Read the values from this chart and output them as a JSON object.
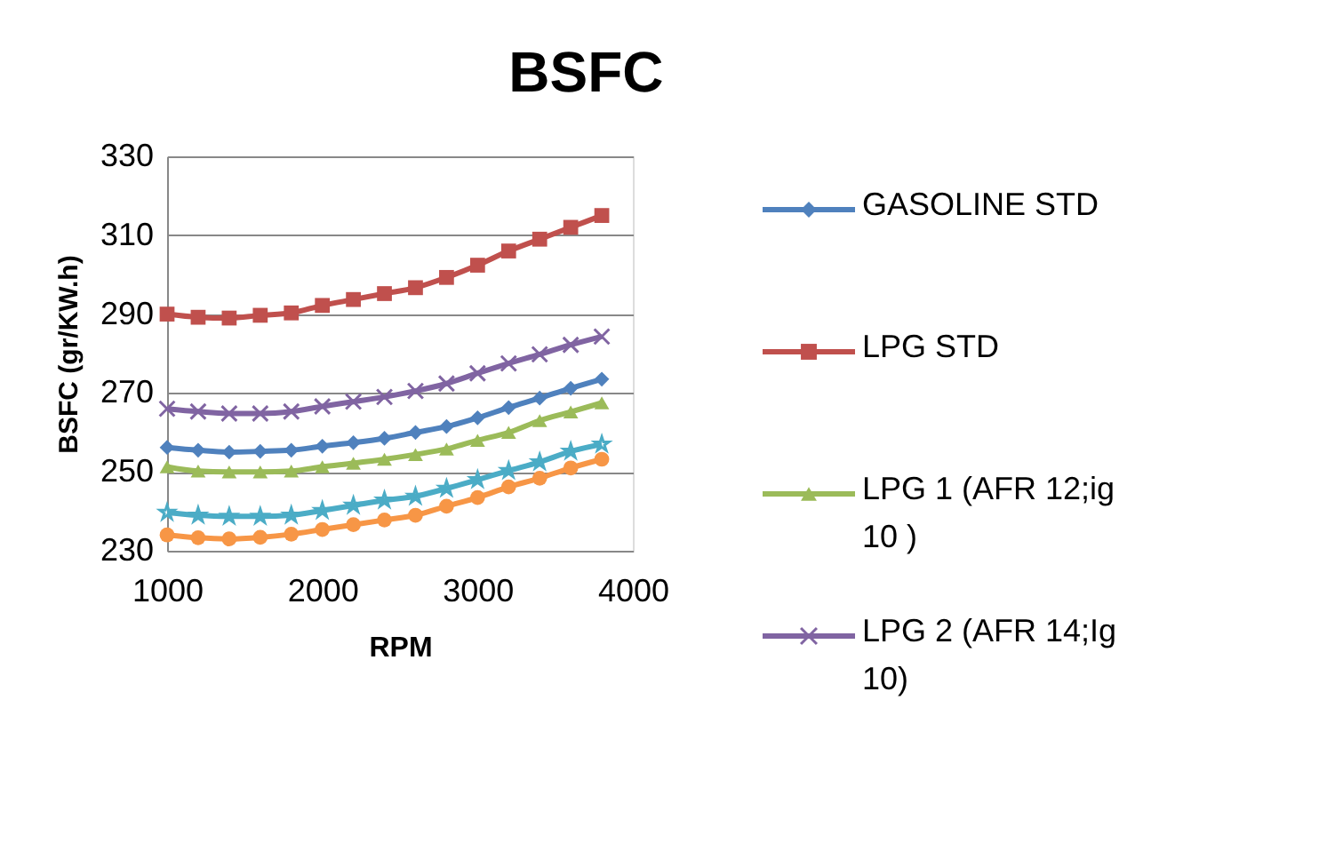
{
  "chart_data": {
    "type": "line",
    "title": "BSFC",
    "xlabel": "RPM",
    "ylabel": "BSFC (gr/KW.h)",
    "x": [
      1000,
      1200,
      1400,
      1600,
      1800,
      2000,
      2200,
      2400,
      2600,
      2800,
      3000,
      3200,
      3400,
      3600,
      3800
    ],
    "xlim": [
      1000,
      4000
    ],
    "xticks": [
      1000,
      2000,
      3000,
      4000
    ],
    "ylim": [
      230,
      330
    ],
    "yticks": [
      230,
      250,
      270,
      290,
      310,
      330
    ],
    "grid": "y",
    "legend": "right",
    "series": [
      {
        "name": "GASOLINE STD",
        "color": "#4f81bd",
        "marker": "diamond",
        "values": [
          256.2,
          255.5,
          255,
          255.2,
          255.5,
          256.5,
          257.4,
          258.5,
          260,
          261.5,
          263.7,
          266.3,
          268.7,
          271.2,
          273.5
        ]
      },
      {
        "name": "LPG STD",
        "color": "#c0504d",
        "marker": "square",
        "values": [
          290,
          289.2,
          289,
          289.7,
          290.3,
          292.2,
          293.7,
          295.2,
          296.7,
          299.3,
          302.4,
          306,
          309,
          312,
          315
        ]
      },
      {
        "name": "LPG 1 (AFR 12;ig 10 )",
        "color": "#9bbb59",
        "marker": "triangle",
        "values": [
          251.3,
          250.2,
          250,
          250,
          250.2,
          251.3,
          252.2,
          253.2,
          254.4,
          255.8,
          258,
          260,
          263,
          265.2,
          267.5
        ]
      },
      {
        "name": "LPG 2 (AFR 14;Ig 10)",
        "color": "#8064a2",
        "marker": "cross",
        "values": [
          266,
          265.3,
          264.8,
          264.8,
          265.3,
          266.6,
          267.8,
          269,
          270.5,
          272.4,
          275,
          277.5,
          279.8,
          282.2,
          284.3
        ]
      },
      {
        "color": "#4bacc6",
        "marker": "star",
        "values": [
          239.7,
          239,
          238.7,
          238.7,
          239,
          240.2,
          241.5,
          242.8,
          243.8,
          245.8,
          248,
          250.3,
          252.5,
          255.2,
          257
        ]
      },
      {
        "color": "#f79646",
        "marker": "circle",
        "values": [
          234,
          233.3,
          233,
          233.4,
          234.2,
          235.4,
          236.6,
          237.8,
          239,
          241.3,
          243.5,
          246.2,
          248.4,
          251,
          253.2
        ]
      }
    ]
  }
}
